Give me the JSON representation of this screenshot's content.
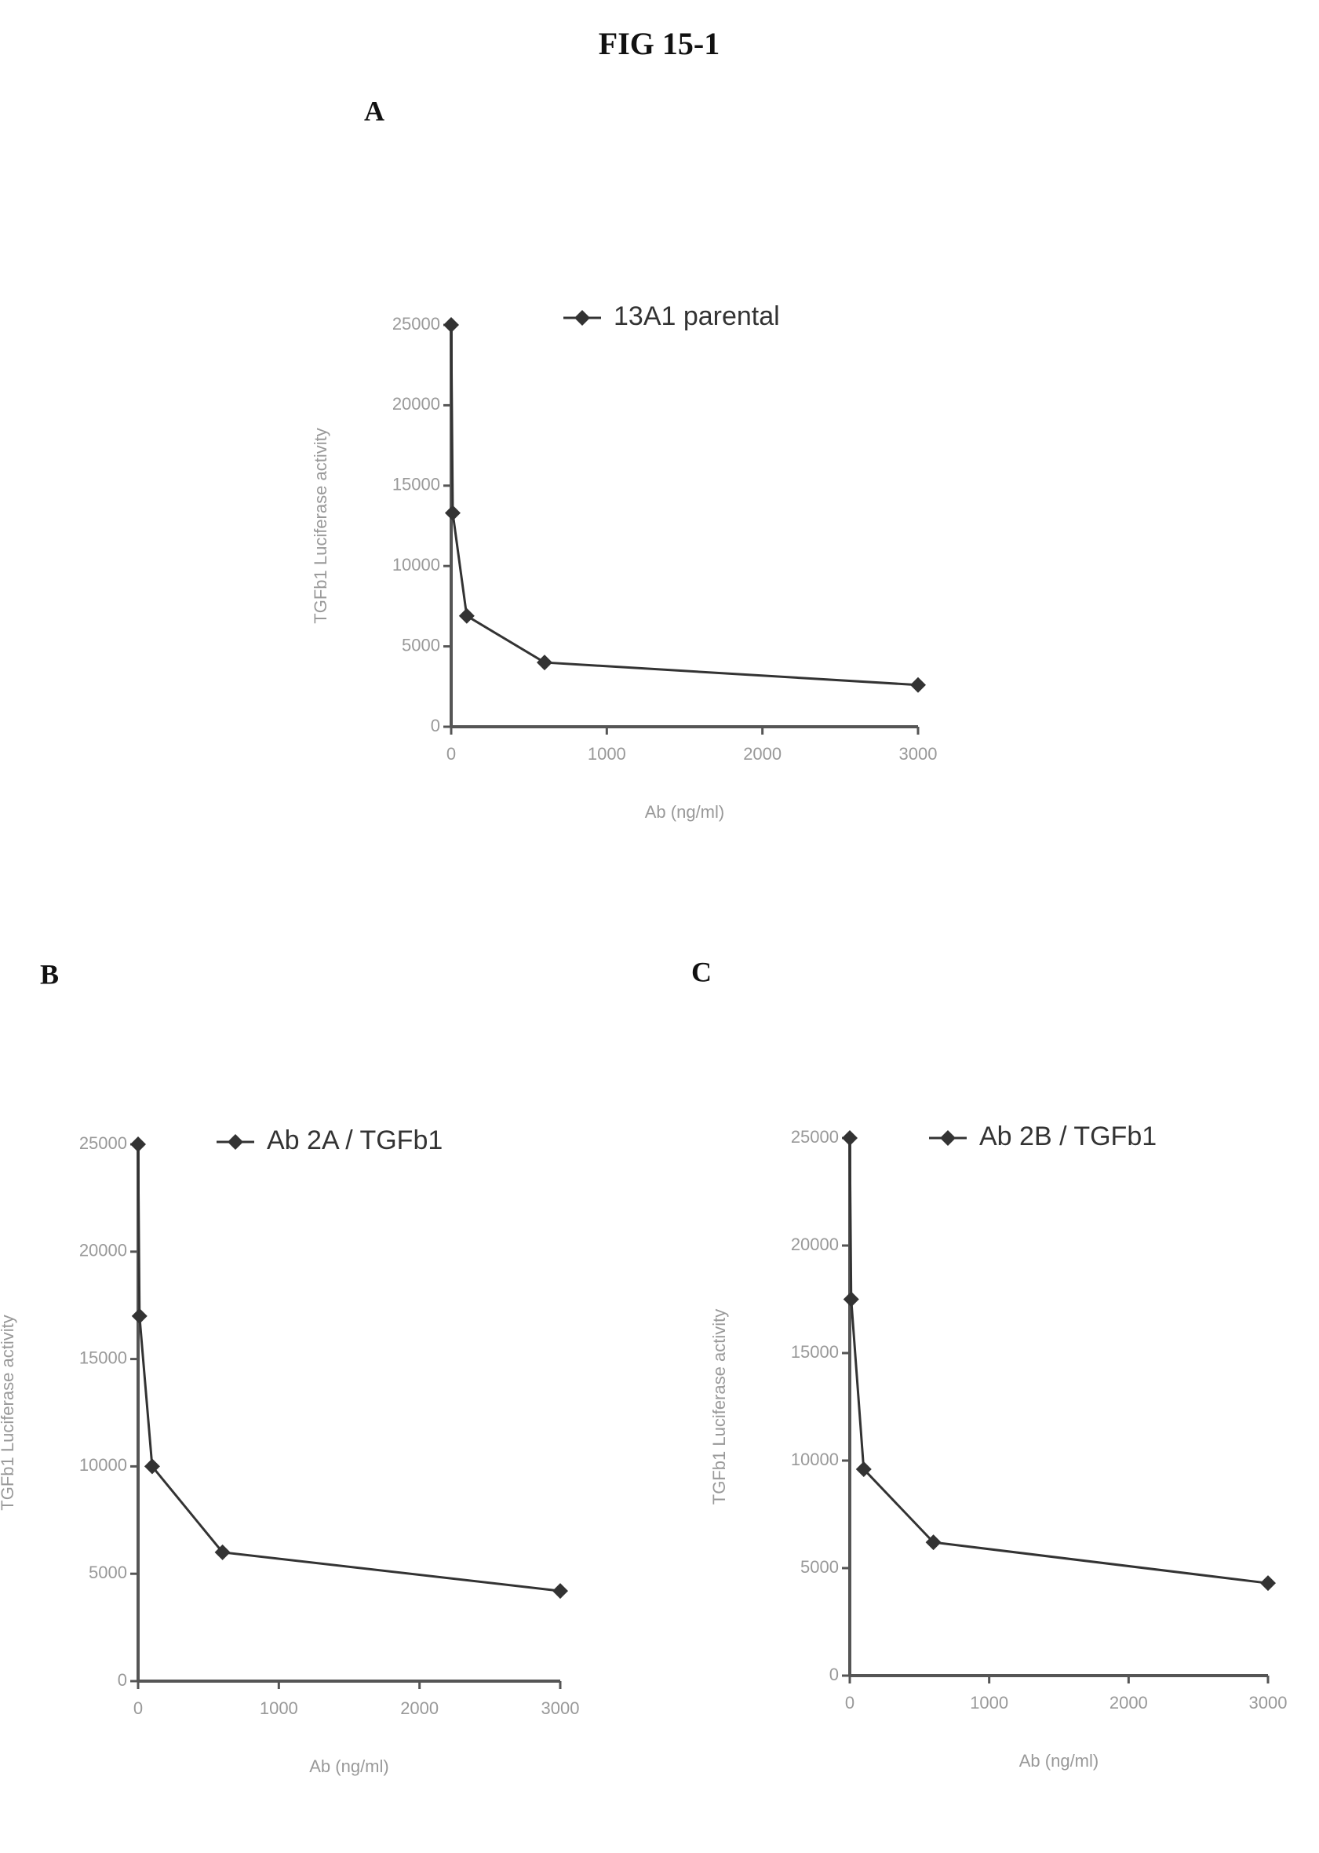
{
  "figure_title": "FIG 15-1",
  "chart_data": [
    {
      "type": "line",
      "panel": "A",
      "x_label": "Ab (ng/ml)",
      "y_label": "TGFb1 Luciferase activity",
      "x": [
        0,
        10,
        100,
        600,
        3000
      ],
      "xlim": [
        0,
        3000
      ],
      "xticks": [
        0,
        1000,
        2000,
        3000
      ],
      "ylim": [
        0,
        25000
      ],
      "yticks": [
        0,
        5000,
        10000,
        15000,
        20000,
        25000
      ],
      "series": [
        {
          "name": "13A1 parental",
          "color": "#333333",
          "values": [
            25000,
            13300,
            6900,
            4000,
            2600
          ]
        }
      ]
    },
    {
      "type": "line",
      "panel": "B",
      "x_label": "Ab (ng/ml)",
      "y_label": "TGFb1 Luciferase activity",
      "x": [
        0,
        10,
        100,
        600,
        3000
      ],
      "xlim": [
        0,
        3000
      ],
      "xticks": [
        0,
        1000,
        2000,
        3000
      ],
      "ylim": [
        0,
        25000
      ],
      "yticks": [
        0,
        5000,
        10000,
        15000,
        20000,
        25000
      ],
      "series": [
        {
          "name": "Ab 2A / TGFb1",
          "color": "#333333",
          "values": [
            25000,
            17000,
            10000,
            6000,
            4200
          ]
        }
      ]
    },
    {
      "type": "line",
      "panel": "C",
      "x_label": "Ab (ng/ml)",
      "y_label": "TGFb1 Luciferase activity",
      "x": [
        0,
        10,
        100,
        600,
        3000
      ],
      "xlim": [
        0,
        3000
      ],
      "xticks": [
        0,
        1000,
        2000,
        3000
      ],
      "ylim": [
        0,
        25000
      ],
      "yticks": [
        0,
        5000,
        10000,
        15000,
        20000,
        25000
      ],
      "series": [
        {
          "name": "Ab 2B / TGFb1",
          "color": "#333333",
          "values": [
            25000,
            17500,
            9600,
            6200,
            4300
          ]
        }
      ]
    }
  ]
}
